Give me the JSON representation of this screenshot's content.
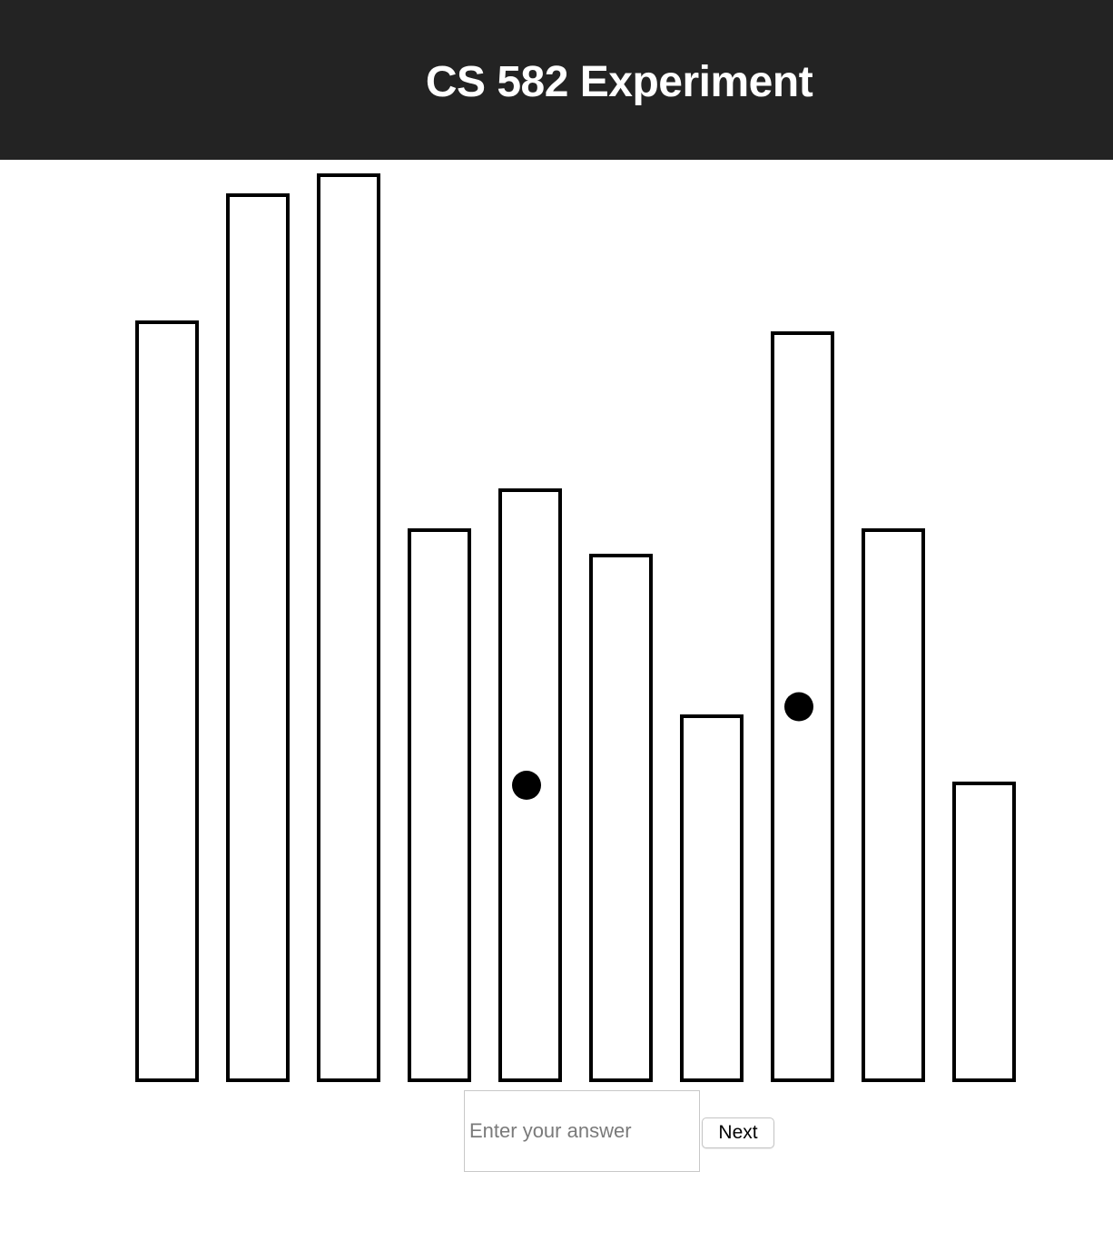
{
  "header": {
    "title": "CS 582 Experiment"
  },
  "chart_data": {
    "type": "bar",
    "categories": [
      "",
      "",
      "",
      "",
      "",
      "",
      "",
      "",
      "",
      ""
    ],
    "values": [
      835,
      975,
      997,
      606,
      650,
      578,
      401,
      823,
      606,
      327
    ],
    "ylim": [
      0,
      1000
    ],
    "marked_bars": [
      4,
      7
    ],
    "bar_fill": "#ffffff",
    "bar_stroke": "#000000",
    "marker_color": "#000000",
    "grid": false
  },
  "form": {
    "answer_placeholder": "Enter your answer",
    "answer_value": "",
    "next_label": "Next"
  }
}
